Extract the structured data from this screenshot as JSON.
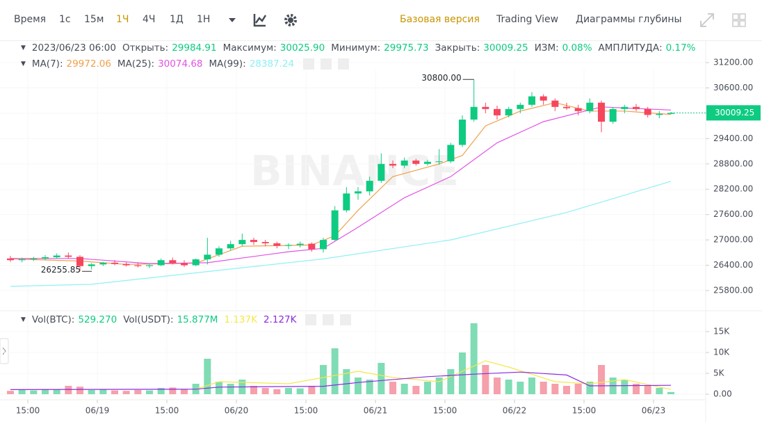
{
  "toolbar": {
    "intervals": [
      "Время",
      "1с",
      "15м",
      "1Ч",
      "4Ч",
      "1Д",
      "1Н"
    ],
    "active": "1Ч",
    "views": [
      "Базовая версия",
      "Trading View",
      "Диаграммы глубины"
    ],
    "active_view": "Базовая версия"
  },
  "chart_data": [
    {
      "type": "candlestick",
      "watermark": "BINANCE",
      "info": {
        "time": "2023/06/23 06:00",
        "fields": [
          {
            "label": "Открыть:",
            "value": "29984.91"
          },
          {
            "label": "Максимум:",
            "value": "30025.90"
          },
          {
            "label": "Минимум:",
            "value": "29975.73"
          },
          {
            "label": "Закрыть:",
            "value": "30009.25"
          },
          {
            "label": "ИЗМ:",
            "value": "0.08%"
          },
          {
            "label": "АМПЛИТУДА:",
            "value": "0.17%"
          }
        ]
      },
      "up_color": "#0ecb81",
      "down_color": "#f6465d",
      "open": [
        26560,
        26520,
        26540,
        26560,
        26590,
        26630,
        26600,
        26380,
        26420,
        26460,
        26430,
        26400,
        26380,
        26400,
        26520,
        26450,
        26400,
        26540,
        26650,
        26800,
        26900,
        27000,
        26950,
        26920,
        26860,
        26880,
        26910,
        26780,
        27000,
        27700,
        28100,
        28150,
        28400,
        28800,
        28760,
        28880,
        28800,
        28850,
        28860,
        29250,
        29850,
        30150,
        30100,
        29950,
        30100,
        30200,
        30400,
        30300,
        30150,
        30120,
        30050,
        30250,
        29800,
        30100,
        30150,
        30100,
        29960,
        29984.91
      ],
      "high": [
        26620,
        26580,
        26600,
        26640,
        26680,
        26700,
        26640,
        26450,
        26480,
        26520,
        26470,
        26450,
        26420,
        26560,
        26580,
        26520,
        26560,
        27050,
        26850,
        26980,
        27150,
        27050,
        27000,
        26960,
        26920,
        26960,
        26940,
        27050,
        27800,
        28250,
        28250,
        28500,
        29050,
        28880,
        28950,
        28920,
        28900,
        29150,
        29300,
        29950,
        30800,
        30250,
        30180,
        30150,
        30250,
        30500,
        30450,
        30350,
        30250,
        30200,
        30350,
        30300,
        30150,
        30200,
        30220,
        30150,
        30050,
        30025.9
      ],
      "low": [
        26480,
        26470,
        26500,
        26520,
        26560,
        26560,
        26255.85,
        26300,
        26380,
        26400,
        26370,
        26350,
        26330,
        26380,
        26420,
        26360,
        26380,
        26420,
        26600,
        26750,
        26850,
        26880,
        26850,
        26800,
        26780,
        26820,
        26720,
        26700,
        26980,
        27650,
        27950,
        28050,
        28350,
        28700,
        28700,
        28760,
        28760,
        28780,
        28820,
        29200,
        29800,
        30000,
        29850,
        29900,
        30000,
        30150,
        30200,
        30050,
        30080,
        29950,
        30000,
        29550,
        29750,
        30000,
        30050,
        29900,
        29880,
        29975.73
      ],
      "close": [
        26520,
        26540,
        26560,
        26590,
        26630,
        26600,
        26380,
        26420,
        26460,
        26430,
        26400,
        26380,
        26400,
        26520,
        26450,
        26400,
        26540,
        26650,
        26800,
        26900,
        27000,
        26950,
        26920,
        26860,
        26880,
        26910,
        26780,
        27000,
        27700,
        28100,
        28150,
        28400,
        28800,
        28760,
        28880,
        28800,
        28850,
        28860,
        29250,
        29850,
        30150,
        30100,
        29950,
        30100,
        30200,
        30400,
        30300,
        30150,
        30120,
        30050,
        30250,
        29800,
        30100,
        30150,
        30100,
        29960,
        29985,
        30009.25
      ],
      "annotations": [
        "30800.00",
        "26255.85"
      ],
      "current_price": {
        "value": 30009.25,
        "label": "30009.25"
      },
      "series": [
        {
          "name": "MA(7)",
          "color": "#f0a04b",
          "legend_value": "29972.06",
          "x": [
            0,
            6,
            10,
            16,
            20,
            26,
            28,
            30,
            33,
            37,
            39,
            41,
            44,
            47,
            50,
            53,
            57
          ],
          "values": [
            26550,
            26500,
            26420,
            26450,
            26850,
            26880,
            27100,
            27700,
            28500,
            28800,
            29000,
            29700,
            30050,
            30250,
            30050,
            30050,
            29972.06
          ]
        },
        {
          "name": "MA(25)",
          "color": "#e252e5",
          "legend_value": "30074.68",
          "x": [
            0,
            6,
            12,
            17,
            24,
            27,
            30,
            34,
            38,
            42,
            46,
            51,
            57
          ],
          "values": [
            26560,
            26560,
            26440,
            26460,
            26720,
            26800,
            27300,
            28000,
            28500,
            29300,
            29800,
            30150,
            30074.68
          ]
        },
        {
          "name": "MA(99)",
          "color": "#8ff0f5",
          "legend_value": "28387.24",
          "x": [
            0,
            7,
            17,
            27,
            38,
            48,
            57
          ],
          "values": [
            25900,
            25950,
            26250,
            26550,
            27000,
            27650,
            28387.24
          ]
        }
      ],
      "xlim": [
        -0.9,
        60
      ],
      "ylim": [
        25355,
        31694
      ],
      "yticks": [
        {
          "value": 31200,
          "label": "31200.00"
        },
        {
          "value": 30600,
          "label": "30600.00"
        },
        {
          "value": 30000,
          "label": "30000.00"
        },
        {
          "value": 29400,
          "label": "29400.00"
        },
        {
          "value": 28800,
          "label": "28800.00"
        },
        {
          "value": 28200,
          "label": "28200.00"
        },
        {
          "value": 27600,
          "label": "27600.00"
        },
        {
          "value": 27000,
          "label": "27000.00"
        },
        {
          "value": 26400,
          "label": "26400.00"
        },
        {
          "value": 25800,
          "label": "25800.00"
        }
      ]
    },
    {
      "type": "bar",
      "legend": [
        {
          "name": "Vol(BTC):",
          "value": "529.270"
        },
        {
          "name": "Vol(USDT):",
          "value": "15.877M"
        }
      ],
      "values": [
        800,
        1000,
        900,
        1200,
        1100,
        2000,
        1800,
        1000,
        1200,
        900,
        800,
        1000,
        900,
        1500,
        1600,
        1200,
        2500,
        8500,
        3000,
        2500,
        3500,
        2000,
        1500,
        1200,
        1500,
        1400,
        2000,
        7000,
        11000,
        6000,
        4000,
        3500,
        7500,
        3000,
        2500,
        2000,
        3000,
        4000,
        6000,
        10000,
        17000,
        7000,
        4000,
        3500,
        3000,
        4000,
        3000,
        2500,
        2000,
        2500,
        3000,
        7000,
        4000,
        3500,
        2500,
        2000,
        1500,
        529.27
      ],
      "up_color": "#7fdcb4",
      "down_color": "#f5a0aa",
      "series": [
        {
          "color": "#f5e74a",
          "legend_value": "1.137K",
          "x": [
            16,
            18,
            24,
            30,
            33,
            37,
            41,
            43,
            47,
            50,
            53,
            57
          ],
          "values": [
            1200,
            3000,
            2500,
            5500,
            4000,
            3000,
            8000,
            6500,
            3000,
            2500,
            3500,
            1137
          ]
        },
        {
          "color": "#8a2be2",
          "legend_value": "2.127K",
          "x": [
            0,
            16,
            18,
            27,
            30,
            36,
            40,
            44,
            48,
            50,
            57
          ],
          "values": [
            1100,
            1200,
            1700,
            1900,
            2800,
            4200,
            4800,
            5300,
            4600,
            2000,
            2127
          ]
        }
      ],
      "xlim": [
        -0.9,
        60
      ],
      "ylim": [
        -1333,
        19500
      ],
      "yticks": [
        {
          "value": 0,
          "label": "0.00"
        },
        {
          "value": 5000,
          "label": "5K"
        },
        {
          "value": 10000,
          "label": "10K"
        },
        {
          "value": 15000,
          "label": "15K"
        }
      ],
      "xticks": [
        {
          "value": 1.5,
          "label": "15:00"
        },
        {
          "value": 7.5,
          "label": "06/19"
        },
        {
          "value": 13.5,
          "label": "15:00"
        },
        {
          "value": 19.5,
          "label": "06/20"
        },
        {
          "value": 25.5,
          "label": "15:00"
        },
        {
          "value": 31.5,
          "label": "06/21"
        },
        {
          "value": 37.5,
          "label": "15:00"
        },
        {
          "value": 43.5,
          "label": "06/22"
        },
        {
          "value": 49.5,
          "label": "15:00"
        },
        {
          "value": 55.5,
          "label": "06/23"
        }
      ]
    }
  ]
}
